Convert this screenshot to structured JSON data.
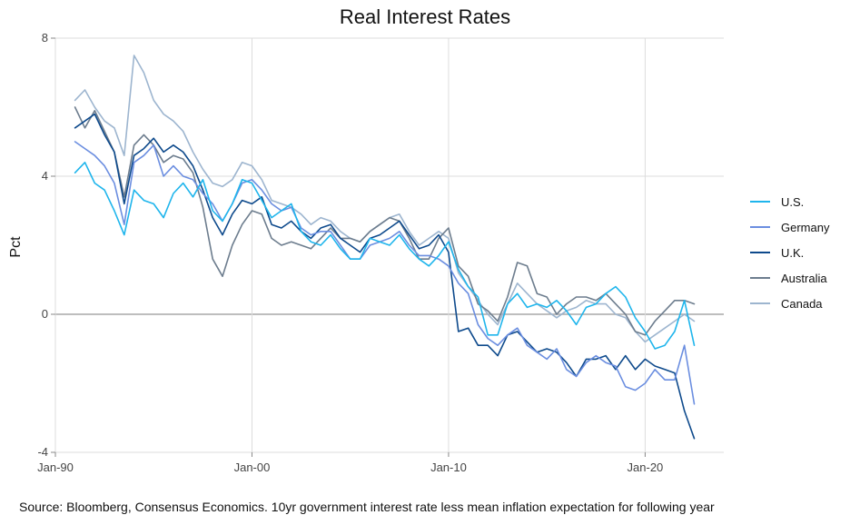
{
  "chart_data": {
    "type": "line",
    "title": "Real Interest Rates",
    "xlabel": "",
    "ylabel": "Pct",
    "source": "Source: Bloomberg, Consensus Economics.  10yr government interest rate less mean inflation expectation for following year",
    "xlim": [
      1990.0,
      2024.0
    ],
    "ylim": [
      -4,
      8
    ],
    "y_ticks": [
      -4,
      0,
      4,
      8
    ],
    "x_ticks": [
      {
        "label": "Jan-90",
        "value": 1990.0
      },
      {
        "label": "Jan-00",
        "value": 2000.0
      },
      {
        "label": "Jan-10",
        "value": 2010.0
      },
      {
        "label": "Jan-20",
        "value": 2020.0
      }
    ],
    "grid": true,
    "legend_position": "right",
    "zero_line": true,
    "series": [
      {
        "name": "U.S.",
        "color": "#1fb5ec",
        "x": [
          1991.0,
          1991.5,
          1992.0,
          1992.5,
          1993.0,
          1993.5,
          1994.0,
          1994.5,
          1995.0,
          1995.5,
          1996.0,
          1996.5,
          1997.0,
          1997.5,
          1998.0,
          1998.5,
          1999.0,
          1999.5,
          2000.0,
          2000.5,
          2001.0,
          2001.5,
          2002.0,
          2002.5,
          2003.0,
          2003.5,
          2004.0,
          2004.5,
          2005.0,
          2005.5,
          2006.0,
          2006.5,
          2007.0,
          2007.5,
          2008.0,
          2008.5,
          2009.0,
          2009.5,
          2010.0,
          2010.5,
          2011.0,
          2011.5,
          2012.0,
          2012.5,
          2013.0,
          2013.5,
          2014.0,
          2014.5,
          2015.0,
          2015.5,
          2016.0,
          2016.5,
          2017.0,
          2017.5,
          2018.0,
          2018.5,
          2019.0,
          2019.5,
          2020.0,
          2020.5,
          2021.0,
          2021.5,
          2022.0,
          2022.5
        ],
        "y": [
          4.1,
          4.4,
          3.8,
          3.6,
          3.0,
          2.3,
          3.6,
          3.3,
          3.2,
          2.8,
          3.5,
          3.8,
          3.4,
          3.9,
          3.0,
          2.7,
          3.2,
          3.9,
          3.8,
          3.3,
          2.8,
          3.0,
          3.2,
          2.4,
          2.1,
          2.0,
          2.3,
          1.9,
          1.6,
          1.6,
          2.2,
          2.1,
          2.0,
          2.3,
          1.9,
          1.6,
          1.4,
          1.7,
          2.1,
          1.3,
          0.8,
          0.5,
          -0.6,
          -0.6,
          0.3,
          0.6,
          0.2,
          0.3,
          0.2,
          0.4,
          0.1,
          -0.3,
          0.2,
          0.3,
          0.6,
          0.8,
          0.5,
          -0.1,
          -0.5,
          -1.0,
          -0.9,
          -0.5,
          0.4,
          -0.9
        ]
      },
      {
        "name": "Germany",
        "color": "#6b8ee0",
        "x": [
          1991.0,
          1991.5,
          1992.0,
          1992.5,
          1993.0,
          1993.5,
          1994.0,
          1994.5,
          1995.0,
          1995.5,
          1996.0,
          1996.5,
          1997.0,
          1997.5,
          1998.0,
          1998.5,
          1999.0,
          1999.5,
          2000.0,
          2000.5,
          2001.0,
          2001.5,
          2002.0,
          2002.5,
          2003.0,
          2003.5,
          2004.0,
          2004.5,
          2005.0,
          2005.5,
          2006.0,
          2006.5,
          2007.0,
          2007.5,
          2008.0,
          2008.5,
          2009.0,
          2009.5,
          2010.0,
          2010.5,
          2011.0,
          2011.5,
          2012.0,
          2012.5,
          2013.0,
          2013.5,
          2014.0,
          2014.5,
          2015.0,
          2015.5,
          2016.0,
          2016.5,
          2017.0,
          2017.5,
          2018.0,
          2018.5,
          2019.0,
          2019.5,
          2020.0,
          2020.5,
          2021.0,
          2021.5,
          2022.0,
          2022.5
        ],
        "y": [
          5.0,
          4.8,
          4.6,
          4.3,
          3.8,
          2.6,
          4.4,
          4.6,
          4.9,
          4.0,
          4.3,
          4.0,
          3.9,
          3.5,
          3.2,
          2.7,
          3.2,
          3.8,
          3.9,
          3.6,
          3.2,
          3.0,
          3.1,
          2.5,
          2.3,
          2.4,
          2.4,
          2.0,
          1.6,
          1.6,
          2.0,
          2.1,
          2.2,
          2.4,
          2.0,
          1.7,
          1.7,
          1.6,
          1.4,
          0.9,
          0.6,
          -0.3,
          -0.7,
          -0.9,
          -0.6,
          -0.4,
          -0.9,
          -1.1,
          -1.3,
          -1.0,
          -1.6,
          -1.8,
          -1.4,
          -1.2,
          -1.4,
          -1.5,
          -2.1,
          -2.2,
          -2.0,
          -1.6,
          -1.9,
          -1.9,
          -0.9,
          -2.6
        ]
      },
      {
        "name": "U.K.",
        "color": "#0e4a8c",
        "x": [
          1991.0,
          1991.5,
          1992.0,
          1992.5,
          1993.0,
          1993.5,
          1994.0,
          1994.5,
          1995.0,
          1995.5,
          1996.0,
          1996.5,
          1997.0,
          1997.5,
          1998.0,
          1998.5,
          1999.0,
          1999.5,
          2000.0,
          2000.5,
          2001.0,
          2001.5,
          2002.0,
          2002.5,
          2003.0,
          2003.5,
          2004.0,
          2004.5,
          2005.0,
          2005.5,
          2006.0,
          2006.5,
          2007.0,
          2007.5,
          2008.0,
          2008.5,
          2009.0,
          2009.5,
          2010.0,
          2010.5,
          2011.0,
          2011.5,
          2012.0,
          2012.5,
          2013.0,
          2013.5,
          2014.0,
          2014.5,
          2015.0,
          2015.5,
          2016.0,
          2016.5,
          2017.0,
          2017.5,
          2018.0,
          2018.5,
          2019.0,
          2019.5,
          2020.0,
          2020.5,
          2021.0,
          2021.5,
          2022.0,
          2022.5
        ],
        "y": [
          5.4,
          5.6,
          5.8,
          5.2,
          4.7,
          3.2,
          4.6,
          4.8,
          5.1,
          4.7,
          4.9,
          4.7,
          4.3,
          3.6,
          2.8,
          2.3,
          2.9,
          3.3,
          3.2,
          3.4,
          2.6,
          2.5,
          2.7,
          2.4,
          2.2,
          2.5,
          2.6,
          2.2,
          2.0,
          1.8,
          2.2,
          2.3,
          2.5,
          2.7,
          2.3,
          1.9,
          2.0,
          2.3,
          1.8,
          -0.5,
          -0.4,
          -0.9,
          -0.9,
          -1.2,
          -0.6,
          -0.5,
          -0.8,
          -1.1,
          -1.0,
          -1.1,
          -1.4,
          -1.8,
          -1.3,
          -1.3,
          -1.2,
          -1.6,
          -1.2,
          -1.6,
          -1.3,
          -1.5,
          -1.6,
          -1.7,
          -2.8,
          -3.6
        ]
      },
      {
        "name": "Australia",
        "color": "#6d7d8e",
        "x": [
          1991.0,
          1991.5,
          1992.0,
          1992.5,
          1993.0,
          1993.5,
          1994.0,
          1994.5,
          1995.0,
          1995.5,
          1996.0,
          1996.5,
          1997.0,
          1997.5,
          1998.0,
          1998.5,
          1999.0,
          1999.5,
          2000.0,
          2000.5,
          2001.0,
          2001.5,
          2002.0,
          2002.5,
          2003.0,
          2003.5,
          2004.0,
          2004.5,
          2005.0,
          2005.5,
          2006.0,
          2006.5,
          2007.0,
          2007.5,
          2008.0,
          2008.5,
          2009.0,
          2009.5,
          2010.0,
          2010.5,
          2011.0,
          2011.5,
          2012.0,
          2012.5,
          2013.0,
          2013.5,
          2014.0,
          2014.5,
          2015.0,
          2015.5,
          2016.0,
          2016.5,
          2017.0,
          2017.5,
          2018.0,
          2018.5,
          2019.0,
          2019.5,
          2020.0,
          2020.5,
          2021.0,
          2021.5,
          2022.0,
          2022.5
        ],
        "y": [
          6.0,
          5.4,
          5.9,
          5.3,
          4.7,
          3.4,
          4.9,
          5.2,
          4.9,
          4.4,
          4.6,
          4.5,
          4.1,
          3.1,
          1.6,
          1.1,
          2.0,
          2.6,
          3.0,
          2.9,
          2.2,
          2.0,
          2.1,
          2.0,
          1.9,
          2.2,
          2.5,
          2.2,
          2.2,
          2.1,
          2.4,
          2.6,
          2.8,
          2.7,
          2.2,
          1.6,
          1.6,
          2.2,
          2.5,
          1.4,
          1.1,
          0.3,
          0.1,
          -0.2,
          0.5,
          1.5,
          1.4,
          0.6,
          0.5,
          0.0,
          0.3,
          0.5,
          0.5,
          0.4,
          0.6,
          0.3,
          0.0,
          -0.5,
          -0.6,
          -0.2,
          0.1,
          0.4,
          0.4,
          0.3
        ]
      },
      {
        "name": "Canada",
        "color": "#9db5cf",
        "x": [
          1991.0,
          1991.5,
          1992.0,
          1992.5,
          1993.0,
          1993.5,
          1994.0,
          1994.5,
          1995.0,
          1995.5,
          1996.0,
          1996.5,
          1997.0,
          1997.5,
          1998.0,
          1998.5,
          1999.0,
          1999.5,
          2000.0,
          2000.5,
          2001.0,
          2001.5,
          2002.0,
          2002.5,
          2003.0,
          2003.5,
          2004.0,
          2004.5,
          2005.0,
          2005.5,
          2006.0,
          2006.5,
          2007.0,
          2007.5,
          2008.0,
          2008.5,
          2009.0,
          2009.5,
          2010.0,
          2010.5,
          2011.0,
          2011.5,
          2012.0,
          2012.5,
          2013.0,
          2013.5,
          2014.0,
          2014.5,
          2015.0,
          2015.5,
          2016.0,
          2016.5,
          2017.0,
          2017.5,
          2018.0,
          2018.5,
          2019.0,
          2019.5,
          2020.0,
          2020.5,
          2021.0,
          2021.5,
          2022.0,
          2022.5
        ],
        "y": [
          6.2,
          6.5,
          6.0,
          5.6,
          5.4,
          4.6,
          7.5,
          7.0,
          6.2,
          5.8,
          5.6,
          5.3,
          4.7,
          4.2,
          3.8,
          3.7,
          3.9,
          4.4,
          4.3,
          3.9,
          3.3,
          3.2,
          3.1,
          2.9,
          2.6,
          2.8,
          2.7,
          2.4,
          2.2,
          2.1,
          2.4,
          2.6,
          2.8,
          2.9,
          2.4,
          2.0,
          2.2,
          2.4,
          2.2,
          1.2,
          0.8,
          0.4,
          0.0,
          -0.3,
          0.3,
          0.9,
          0.6,
          0.3,
          0.1,
          -0.1,
          0.1,
          0.2,
          0.4,
          0.3,
          0.3,
          0.0,
          -0.1,
          -0.5,
          -0.8,
          -0.6,
          -0.4,
          -0.2,
          0.0,
          -0.2
        ]
      }
    ]
  }
}
